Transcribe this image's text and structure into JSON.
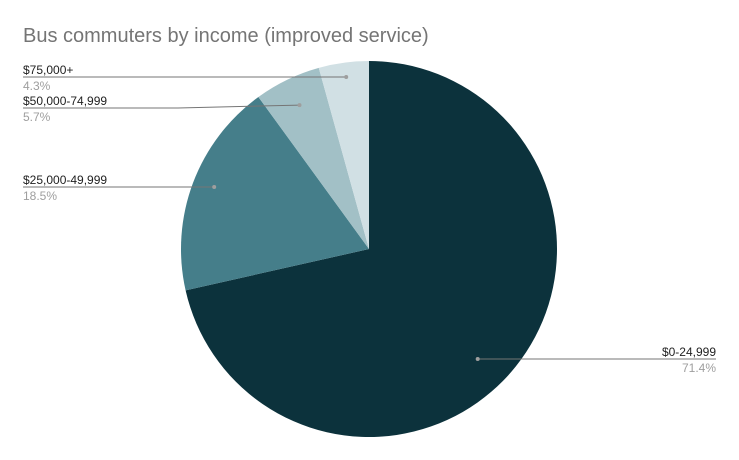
{
  "chart_data": {
    "type": "pie",
    "title": "Bus commuters by income (improved service)",
    "slices": [
      {
        "label": "$0-24,999",
        "value": 71.4,
        "display": "71.4%",
        "color": "#0c323c"
      },
      {
        "label": "$25,000-49,999",
        "value": 18.5,
        "display": "18.5%",
        "color": "#457e8a"
      },
      {
        "label": "$50,000-74,999",
        "value": 5.7,
        "display": "5.7%",
        "color": "#a2c0c6"
      },
      {
        "label": "$75,000+",
        "value": 4.3,
        "display": "4.3%",
        "color": "#d1e0e4"
      }
    ],
    "legend": "none",
    "start_angle": "12 o'clock",
    "direction": "clockwise"
  }
}
